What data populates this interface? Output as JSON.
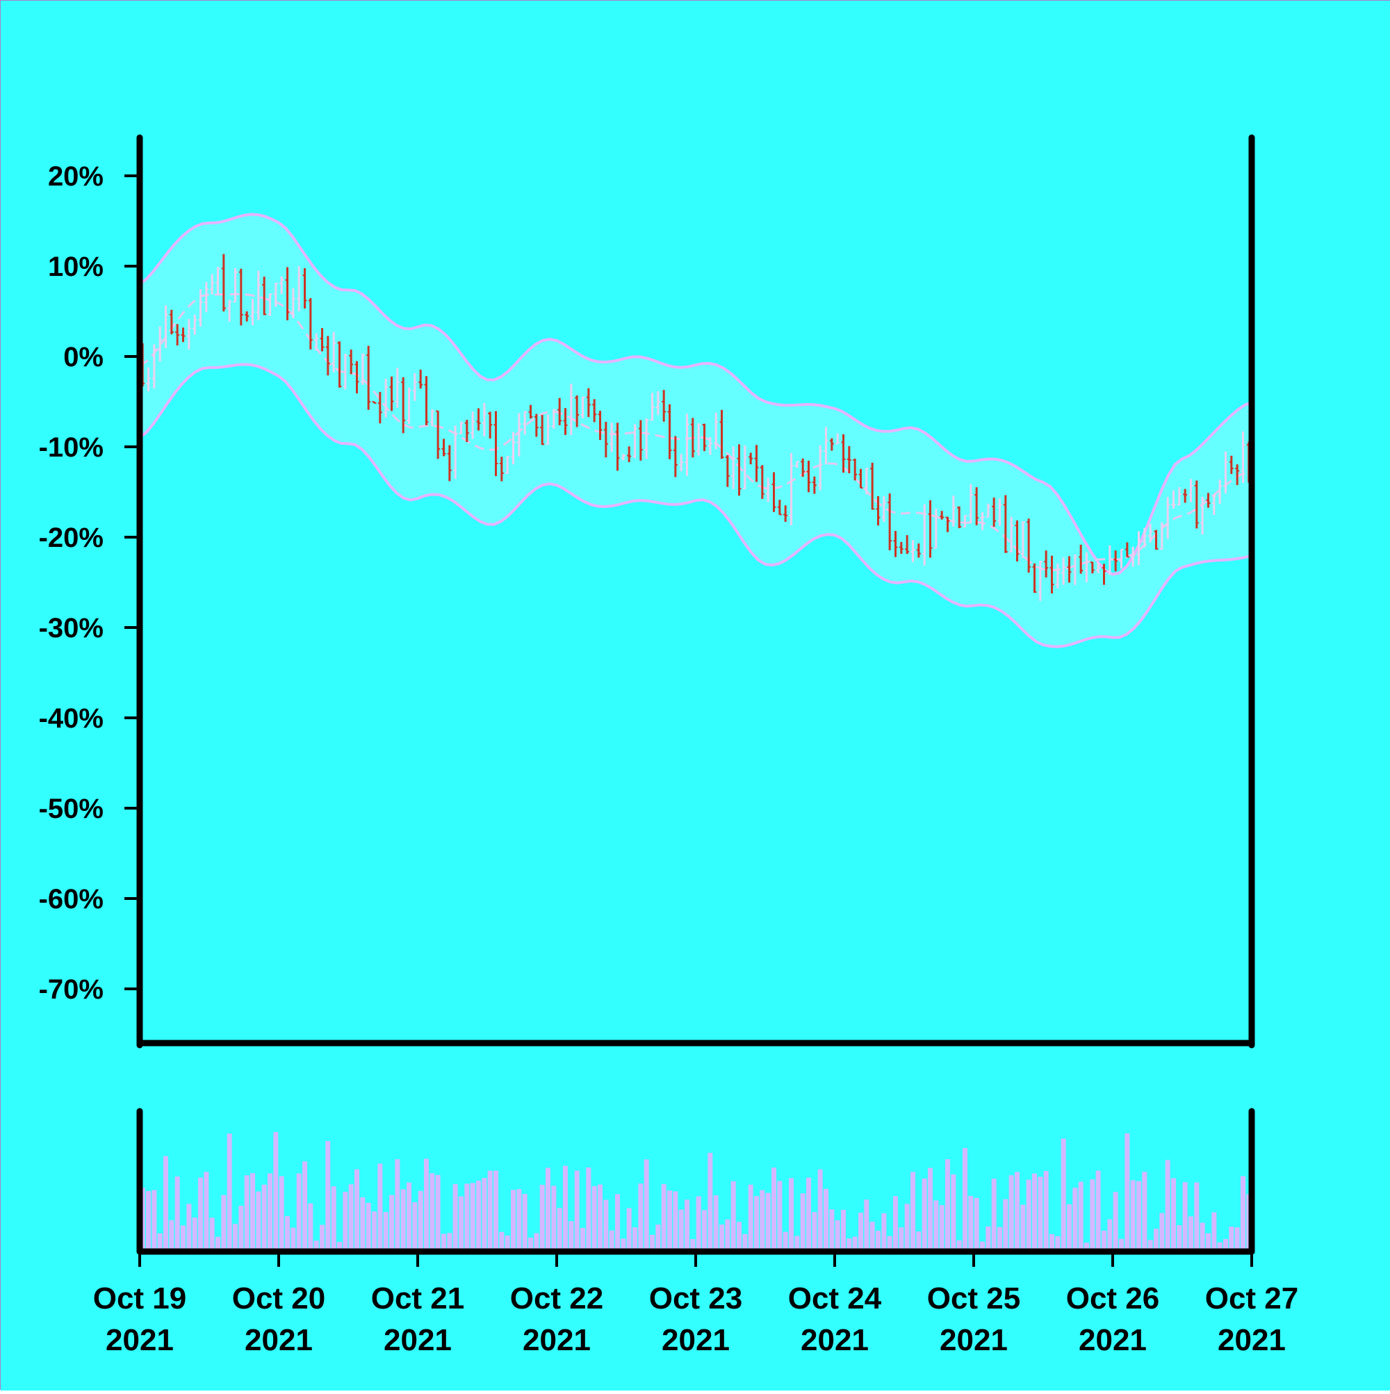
{
  "colors": {
    "background": "#33ffff",
    "band_fill": "#66ffff",
    "band_line": "#e6b3ff",
    "mid_line": "#e6c8f0",
    "bar_down": "#cc3322",
    "bar_up": "#ecd0f0",
    "volume": "#d4b8ff",
    "axis": "#000000"
  },
  "chart_data": {
    "type": "ohlc",
    "title": "",
    "xlabel": "",
    "ylabel": "",
    "yformat": "percent",
    "ylim": [
      -76,
      24
    ],
    "xlim": [
      "2021-10-19",
      "2021-10-27"
    ],
    "yticks": [
      20,
      10,
      0,
      -10,
      -20,
      -30,
      -40,
      -50,
      -60,
      -70
    ],
    "ytick_labels": [
      "20%",
      "10%",
      "0%",
      "-10%",
      "-20%",
      "-30%",
      "-40%",
      "-50%",
      "-60%",
      "-70%"
    ],
    "xticks": [
      "Oct 19",
      "Oct 20",
      "Oct 21",
      "Oct 22",
      "Oct 23",
      "Oct 24",
      "Oct 25",
      "Oct 26",
      "Oct 27"
    ],
    "xtick_year": "2021",
    "bars_per_day": 24,
    "grid": false,
    "legend": "none",
    "bollinger_anchor": {
      "x_day": [
        0,
        0.5,
        1,
        1.5,
        2,
        2.5,
        3,
        3.5,
        4,
        4.5,
        5,
        5.5,
        6,
        6.5,
        7,
        7.5,
        8
      ],
      "upper": [
        8,
        15,
        15,
        7,
        3,
        -2,
        2,
        -1,
        -1,
        -4,
        -6,
        -9,
        -11,
        -13,
        -25,
        -12,
        -4
      ],
      "middle": [
        -1,
        7,
        6,
        -2,
        -8,
        -10,
        -6,
        -9,
        -9,
        -14,
        -12,
        -18,
        -18,
        -23,
        -23,
        -18,
        -12
      ],
      "lower": [
        -9,
        -1,
        -2,
        -10,
        -16,
        -18,
        -14,
        -17,
        -16,
        -22,
        -20,
        -26,
        -27,
        -31,
        -32,
        -24,
        -21
      ]
    },
    "volume_panel": {
      "ylim": [
        0,
        100
      ]
    }
  }
}
